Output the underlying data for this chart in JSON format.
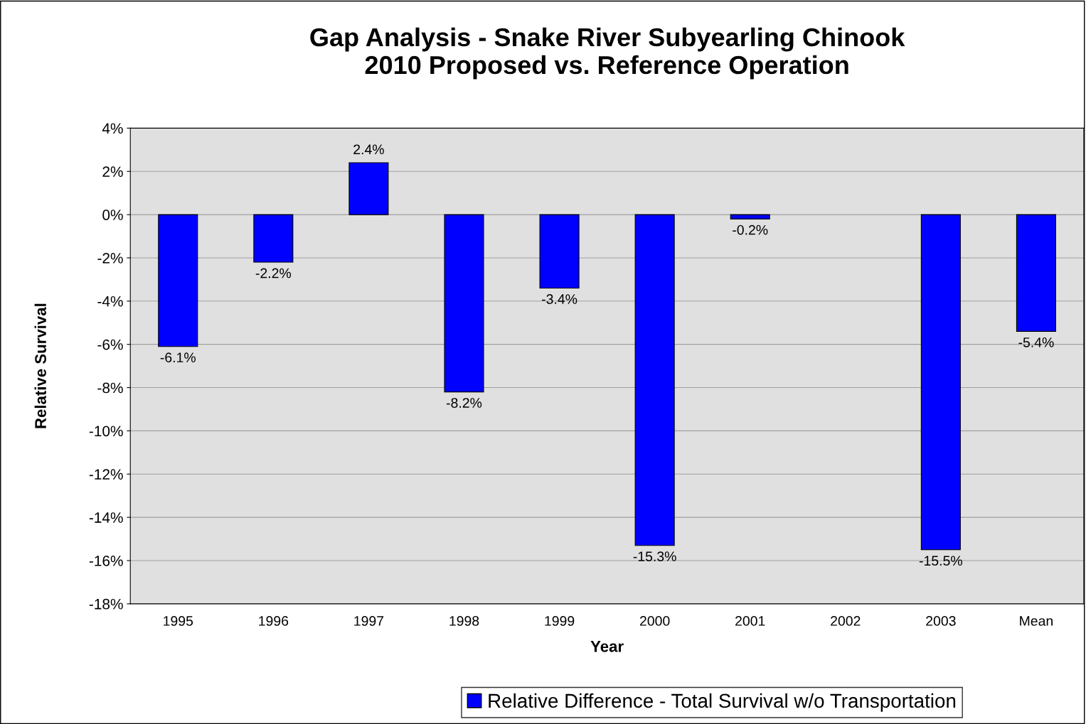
{
  "chart_data": {
    "type": "bar",
    "title": "Gap Analysis - Snake River Subyearling Chinook\n2010 Proposed vs. Reference Operation",
    "xlabel": "Year",
    "ylabel": "Relative Survival",
    "categories": [
      "1995",
      "1996",
      "1997",
      "1998",
      "1999",
      "2000",
      "2001",
      "2002",
      "2003",
      "Mean"
    ],
    "series": [
      {
        "name": "Relative Difference - Total Survival w/o Transportation",
        "color": "#0000ff",
        "values": [
          -6.1,
          -2.2,
          2.4,
          -8.2,
          -3.4,
          -15.3,
          -0.2,
          null,
          -15.5,
          -5.4
        ],
        "value_labels": [
          "-6.1%",
          "-2.2%",
          "2.4%",
          "-8.2%",
          "-3.4%",
          "-15.3%",
          "-0.2%",
          null,
          "-15.5%",
          "-5.4%"
        ]
      }
    ],
    "ylim": [
      -18,
      4
    ],
    "yticks": [
      {
        "value": 4,
        "label": "4%"
      },
      {
        "value": 2,
        "label": "2%"
      },
      {
        "value": 0,
        "label": "0%"
      },
      {
        "value": -2,
        "label": "-2%"
      },
      {
        "value": -4,
        "label": "-4%"
      },
      {
        "value": -6,
        "label": "-6%"
      },
      {
        "value": -8,
        "label": "-8%"
      },
      {
        "value": -10,
        "label": "-10%"
      },
      {
        "value": -12,
        "label": "-12%"
      },
      {
        "value": -14,
        "label": "-14%"
      },
      {
        "value": -16,
        "label": "-16%"
      },
      {
        "value": -18,
        "label": "-18%"
      }
    ],
    "grid": "y",
    "legend": "bottom"
  }
}
